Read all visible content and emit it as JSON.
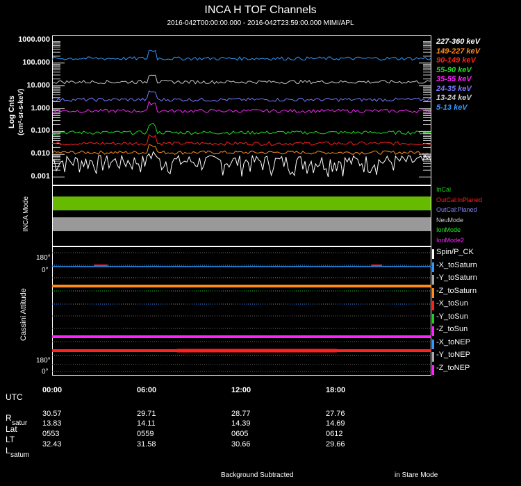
{
  "title": "INCA H TOF Channels",
  "subtitle": "2016-042T00:00:00.000 - 2016-042T23:59:00.000 MIMI/APL",
  "chart_data": {
    "type": "line",
    "title": "INCA H TOF Channels",
    "ylabel_line1": "Log Cnts",
    "ylabel_line2": "(cm²-sr-s-keV)",
    "yscale": "log",
    "ylim": [
      0.001,
      1000
    ],
    "y_tick_labels": [
      "1000.000",
      "100.000",
      "10.000",
      "1.000",
      "0.100",
      "0.010",
      "0.001"
    ],
    "x_tick_labels": [
      "00:00",
      "06:00",
      "12:00",
      "18:00"
    ],
    "xlim_hours": [
      0,
      24
    ],
    "series": [
      {
        "name": "227-360 keV",
        "color": "#ffffff",
        "level": 0.005
      },
      {
        "name": "149-227 keV",
        "color": "#ff8c1a",
        "level": 0.012
      },
      {
        "name": "90-149 keV",
        "color": "#ff2020",
        "level": 0.03
      },
      {
        "name": "55-90 keV",
        "color": "#22dd22",
        "level": 0.09
      },
      {
        "name": "35-55 keV",
        "color": "#ff22ff",
        "level": 0.8
      },
      {
        "name": "24-35 keV",
        "color": "#7a7aff",
        "level": 2.5
      },
      {
        "name": "13-24 keV",
        "color": "#cccccc",
        "level": 15
      },
      {
        "name": "5-13 keV",
        "color": "#3399ff",
        "level": 160
      }
    ]
  },
  "inca_mode": {
    "label": "INCA Mode",
    "legend": [
      {
        "label": "InCal",
        "color": "#22cc22"
      },
      {
        "label": "OutCal:InPlaned",
        "color": "#ff2020"
      },
      {
        "label": "OutCal:Planed",
        "color": "#8888ff"
      },
      {
        "label": "NeuMode",
        "color": "#cccccc"
      },
      {
        "label": "IonMode",
        "color": "#22ee22"
      },
      {
        "label": "IonMode2",
        "color": "#ff22ff"
      }
    ],
    "bars": [
      {
        "name": "incal-bar",
        "color": "#66bb00"
      },
      {
        "name": "neumode-bar",
        "color": "#999999"
      }
    ]
  },
  "attitude": {
    "label": "Cassini Attitude",
    "tick_top_180": "180°",
    "tick_top_0": "0°",
    "tick_bottom_180": "180°",
    "tick_bottom_0": "0°",
    "legend": [
      {
        "label": "Spin/P_CK",
        "color": "#ffffff"
      },
      {
        "label": "-X_toSaturn",
        "color": "#3399ff"
      },
      {
        "label": "-Y_toSaturn",
        "color": "#aaaaaa"
      },
      {
        "label": "-Z_toSaturn",
        "color": "#ff8c1a"
      },
      {
        "label": "-X_toSun",
        "color": "#ff2020"
      },
      {
        "label": "-Y_toSun",
        "color": "#22cc22"
      },
      {
        "label": "-Z_toSun",
        "color": "#ff22ff"
      },
      {
        "label": "-X_toNEP",
        "color": "#3399ff"
      },
      {
        "label": "-Y_toNEP",
        "color": "#aaaaaa"
      },
      {
        "label": "-Z_toNEP",
        "color": "#ff22ff"
      }
    ]
  },
  "ephemeris": {
    "utc_label": "UTC",
    "times": [
      "00:00",
      "06:00",
      "12:00",
      "18:00"
    ],
    "r_label": "R",
    "r_sub": "satur",
    "r": [
      "30.57",
      "29.71",
      "28.77",
      "27.76"
    ],
    "lat_label": "Lat",
    "lat": [
      "13.83",
      "14.11",
      "14.39",
      "14.69"
    ],
    "lt_label": "LT",
    "lt": [
      "0553",
      "0559",
      "0605",
      "0612"
    ],
    "l_label": "L",
    "l_sub": "satum",
    "l": [
      "32.43",
      "31.58",
      "30.66",
      "29.66"
    ]
  },
  "footer": {
    "left": "Background Subtracted",
    "right": "in Stare Mode"
  }
}
